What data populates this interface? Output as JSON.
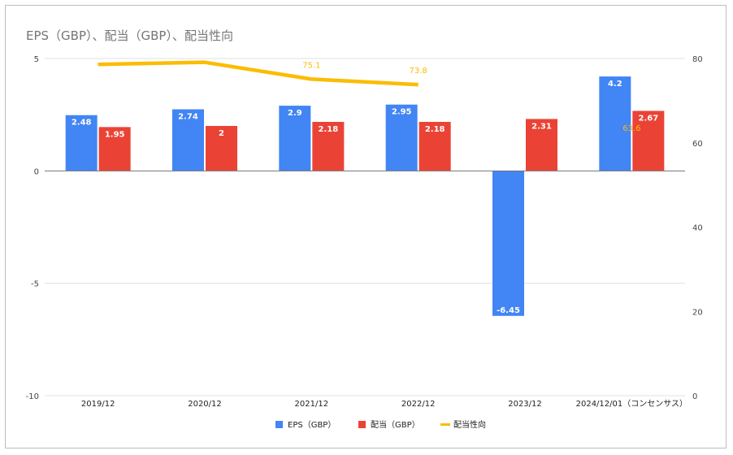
{
  "chart_data": {
    "type": "bar",
    "title": "EPS（GBP）、配当（GBP）、配当性向",
    "categories": [
      "2019/12",
      "2020/12",
      "2021/12",
      "2022/12",
      "2023/12",
      "2024/12/01（コンセンサス）"
    ],
    "series": [
      {
        "name": "EPS（GBP）",
        "type": "bar",
        "axis": "left",
        "color": "#4285f4",
        "values": [
          2.48,
          2.74,
          2.9,
          2.95,
          -6.45,
          4.2
        ],
        "labels": [
          "2.48",
          "2.74",
          "2.9",
          "2.95",
          "-6.45",
          "4.2"
        ]
      },
      {
        "name": "配当（GBP）",
        "type": "bar",
        "axis": "left",
        "color": "#ea4335",
        "values": [
          1.95,
          2,
          2.18,
          2.18,
          2.31,
          2.67
        ],
        "labels": [
          "1.95",
          "2",
          "2.18",
          "2.18",
          "2.31",
          "2.67"
        ]
      },
      {
        "name": "配当性向",
        "type": "line",
        "axis": "right",
        "color": "#fbbc04",
        "values": [
          78.6,
          79.1,
          75.1,
          73.8,
          null,
          63.6
        ],
        "labels": [
          "",
          "",
          "75.1",
          "73.8",
          "",
          "63.6"
        ]
      }
    ],
    "left_axis": {
      "ylim": [
        -10,
        5
      ],
      "ticks": [
        -10,
        -5,
        0,
        5
      ],
      "tick_labels": [
        "-10",
        "-5",
        "0",
        "5"
      ]
    },
    "right_axis": {
      "ylim": [
        0,
        80
      ],
      "ticks": [
        0,
        20,
        40,
        60,
        80
      ],
      "tick_labels": [
        "0",
        "20",
        "40",
        "60",
        "80"
      ]
    },
    "grid": true,
    "legend_position": "bottom"
  }
}
